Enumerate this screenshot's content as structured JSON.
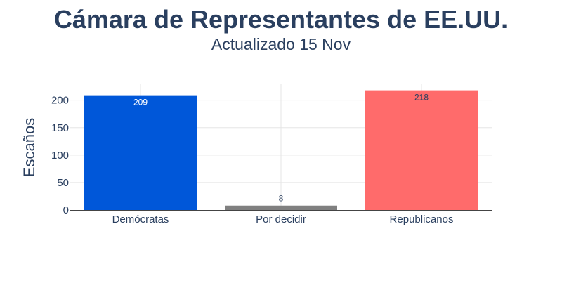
{
  "chart_data": {
    "type": "bar",
    "title": "Cámara de Representantes de EE.UU.",
    "subtitle": "Actualizado 15 Nov",
    "xlabel": "",
    "ylabel": "Escaños",
    "categories": [
      "Demócratas",
      "Por decidir",
      "Republicanos"
    ],
    "values": [
      209,
      8,
      218
    ],
    "data_labels": [
      "209",
      "8",
      "218"
    ],
    "colors": [
      "#0057d9",
      "#808080",
      "#ff6b6b"
    ],
    "data_label_colors": [
      "#ffffff",
      "#2a3f5f",
      "#2a3f5f"
    ],
    "data_label_positions": [
      "inside",
      "outside",
      "inside"
    ],
    "ylim": [
      0,
      229
    ],
    "yticks": [
      0,
      50,
      100,
      150,
      200
    ],
    "ytick_labels": [
      "0",
      "50",
      "100",
      "150",
      "200"
    ],
    "grid": true,
    "legend": "none"
  }
}
